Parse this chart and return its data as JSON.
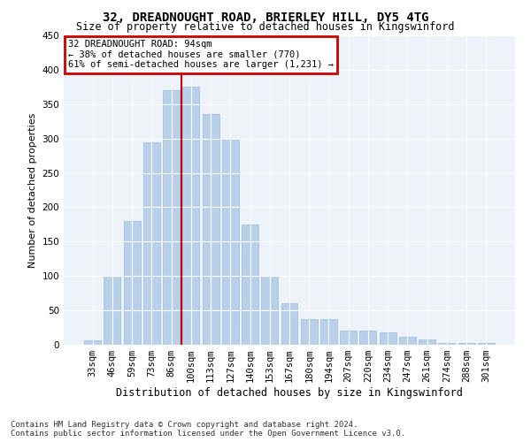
{
  "title": "32, DREADNOUGHT ROAD, BRIERLEY HILL, DY5 4TG",
  "subtitle": "Size of property relative to detached houses in Kingswinford",
  "xlabel": "Distribution of detached houses by size in Kingswinford",
  "ylabel": "Number of detached properties",
  "categories": [
    "33sqm",
    "46sqm",
    "59sqm",
    "73sqm",
    "86sqm",
    "100sqm",
    "113sqm",
    "127sqm",
    "140sqm",
    "153sqm",
    "167sqm",
    "180sqm",
    "194sqm",
    "207sqm",
    "220sqm",
    "234sqm",
    "247sqm",
    "261sqm",
    "274sqm",
    "288sqm",
    "301sqm"
  ],
  "values": [
    7,
    100,
    180,
    295,
    370,
    375,
    335,
    300,
    175,
    100,
    60,
    37,
    37,
    20,
    20,
    18,
    12,
    8,
    3,
    3,
    2
  ],
  "bar_color": "#b8d0ea",
  "bar_edge_color": "#9ab9d8",
  "vline_color": "#cc0000",
  "vline_pos": 4.5,
  "annotation_lines": [
    "32 DREADNOUGHT ROAD: 94sqm",
    "← 38% of detached houses are smaller (770)",
    "61% of semi-detached houses are larger (1,231) →"
  ],
  "annotation_box_color": "#cc0000",
  "ylim": [
    0,
    450
  ],
  "yticks": [
    0,
    50,
    100,
    150,
    200,
    250,
    300,
    350,
    400,
    450
  ],
  "background_color": "#eef2f9",
  "footer": "Contains HM Land Registry data © Crown copyright and database right 2024.\nContains public sector information licensed under the Open Government Licence v3.0.",
  "grid_color": "#ffffff",
  "title_fontsize": 10,
  "subtitle_fontsize": 8.5,
  "ylabel_fontsize": 8,
  "xlabel_fontsize": 8.5,
  "tick_fontsize": 7.5,
  "annotation_fontsize": 7.5,
  "footer_fontsize": 6.5
}
